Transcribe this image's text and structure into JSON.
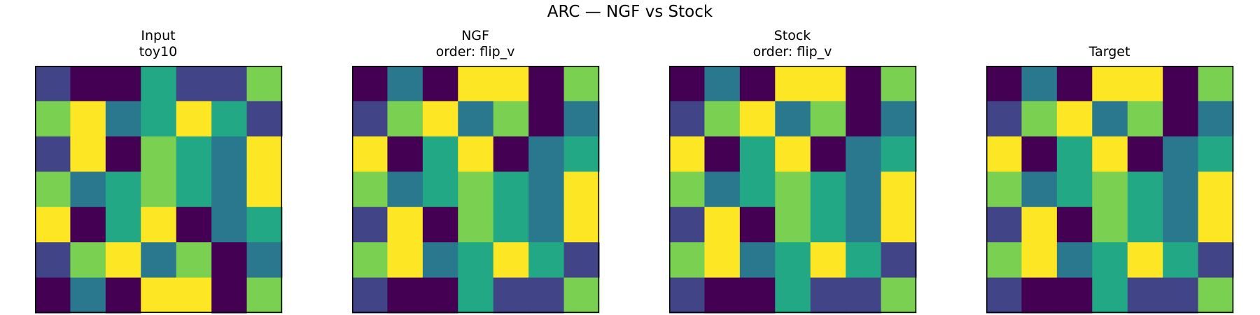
{
  "figure": {
    "title": "ARC — NGF vs Stock"
  },
  "colors": {
    "0": "#440154",
    "1": "#414487",
    "2": "#2a788e",
    "3": "#22a884",
    "4": "#7ad151",
    "5": "#fde725"
  },
  "chart_data": [
    {
      "type": "heatmap",
      "title": "Input\ntoy10",
      "title_lines": [
        "Input",
        "toy10"
      ],
      "grid": [
        [
          1,
          0,
          0,
          3,
          1,
          1,
          4
        ],
        [
          4,
          5,
          2,
          3,
          5,
          3,
          1
        ],
        [
          1,
          5,
          0,
          4,
          3,
          2,
          5
        ],
        [
          4,
          2,
          3,
          4,
          3,
          2,
          5
        ],
        [
          5,
          0,
          3,
          5,
          0,
          2,
          3
        ],
        [
          1,
          4,
          5,
          2,
          4,
          0,
          2
        ],
        [
          0,
          2,
          0,
          5,
          5,
          0,
          4
        ]
      ]
    },
    {
      "type": "heatmap",
      "title": "NGF\norder: flip_v",
      "title_lines": [
        "NGF",
        "order: flip_v"
      ],
      "grid": [
        [
          0,
          2,
          0,
          5,
          5,
          0,
          4
        ],
        [
          1,
          4,
          5,
          2,
          4,
          0,
          2
        ],
        [
          5,
          0,
          3,
          5,
          0,
          2,
          3
        ],
        [
          4,
          2,
          3,
          4,
          3,
          2,
          5
        ],
        [
          1,
          5,
          0,
          4,
          3,
          2,
          5
        ],
        [
          4,
          5,
          2,
          3,
          5,
          3,
          1
        ],
        [
          1,
          0,
          0,
          3,
          1,
          1,
          4
        ]
      ]
    },
    {
      "type": "heatmap",
      "title": "Stock\norder: flip_v",
      "title_lines": [
        "Stock",
        "order: flip_v"
      ],
      "grid": [
        [
          0,
          2,
          0,
          5,
          5,
          0,
          4
        ],
        [
          1,
          4,
          5,
          2,
          4,
          0,
          2
        ],
        [
          5,
          0,
          3,
          5,
          0,
          2,
          3
        ],
        [
          4,
          2,
          3,
          4,
          3,
          2,
          5
        ],
        [
          1,
          5,
          0,
          4,
          3,
          2,
          5
        ],
        [
          4,
          5,
          2,
          3,
          5,
          3,
          1
        ],
        [
          1,
          0,
          0,
          3,
          1,
          1,
          4
        ]
      ]
    },
    {
      "type": "heatmap",
      "title": "Target",
      "title_lines": [
        "Target"
      ],
      "grid": [
        [
          0,
          2,
          0,
          5,
          5,
          0,
          4
        ],
        [
          1,
          4,
          5,
          2,
          4,
          0,
          2
        ],
        [
          5,
          0,
          3,
          5,
          0,
          2,
          3
        ],
        [
          4,
          2,
          3,
          4,
          3,
          2,
          5
        ],
        [
          1,
          5,
          0,
          4,
          3,
          2,
          5
        ],
        [
          4,
          5,
          2,
          3,
          5,
          3,
          1
        ],
        [
          1,
          0,
          0,
          3,
          1,
          1,
          4
        ]
      ]
    }
  ]
}
